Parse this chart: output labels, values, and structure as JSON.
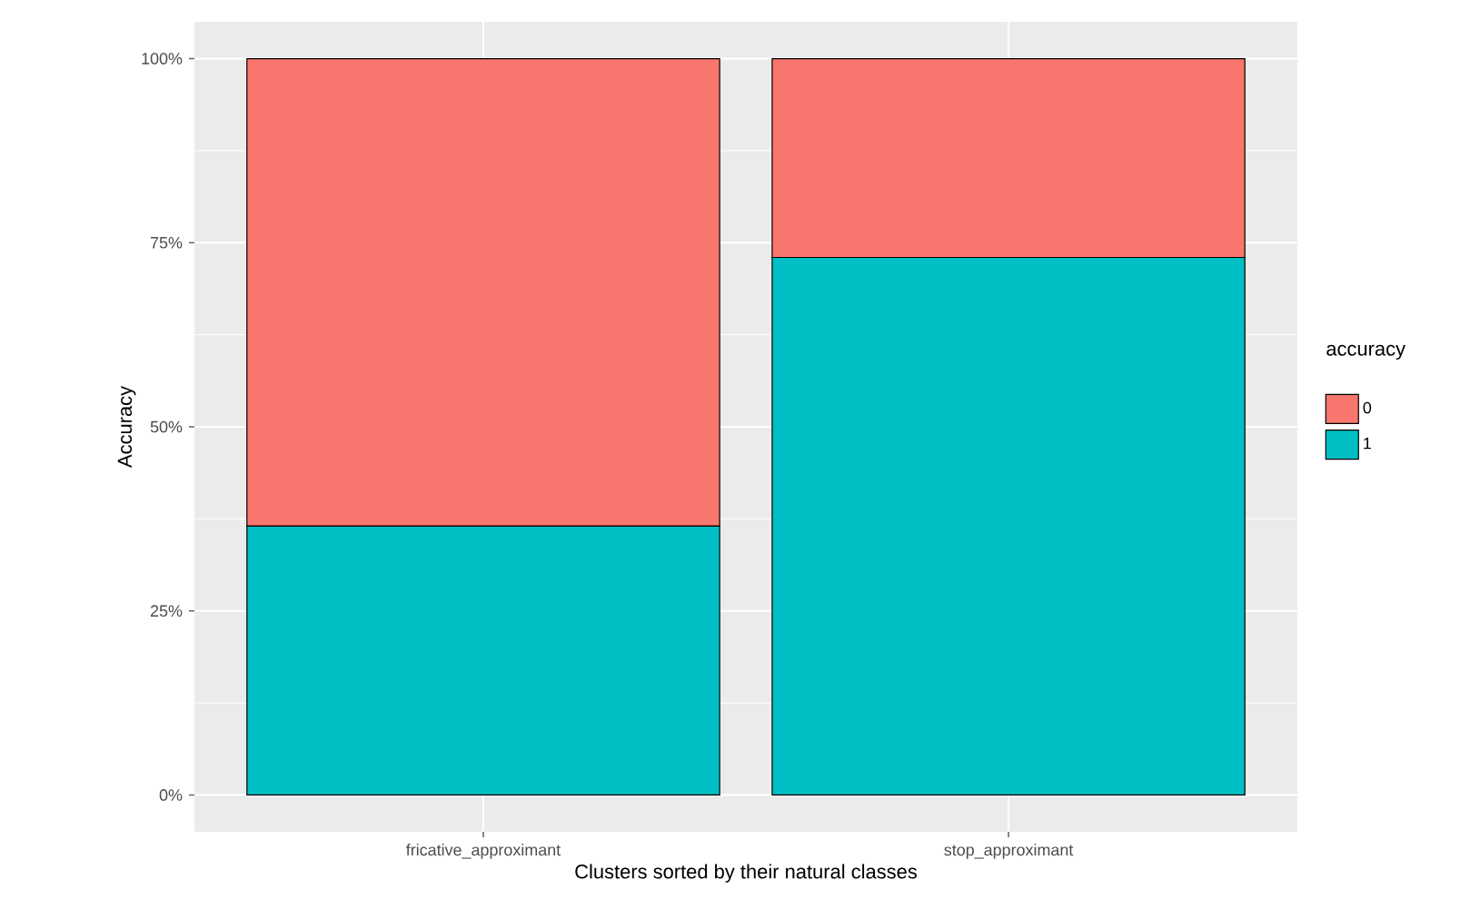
{
  "chart_data": {
    "type": "bar",
    "stacked": true,
    "xlabel": "Clusters sorted by their natural classes",
    "ylabel": "Accuracy",
    "legend_title": "accuracy",
    "legend": "right",
    "grid": true,
    "categories": [
      "fricative_approximant",
      "stop_approximant"
    ],
    "ylim": [
      -5,
      105
    ],
    "yticks": [
      {
        "value": 0,
        "label": "0%"
      },
      {
        "value": 25,
        "label": "25%"
      },
      {
        "value": 50,
        "label": "50%"
      },
      {
        "value": 75,
        "label": "75%"
      },
      {
        "value": 100,
        "label": "100%"
      }
    ],
    "series": [
      {
        "name": "1",
        "color": "#00bfc4",
        "values": [
          36.5,
          73
        ]
      },
      {
        "name": "0",
        "color": "#f8766d",
        "values": [
          63.5,
          27
        ]
      }
    ]
  }
}
